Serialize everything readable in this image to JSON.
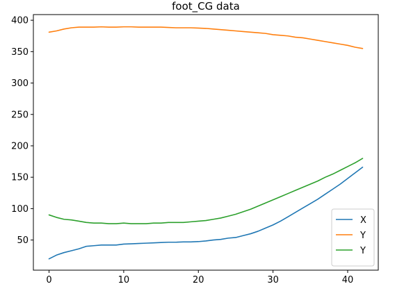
{
  "chart_data": {
    "type": "line",
    "title": "foot_CG data",
    "xlabel": "",
    "ylabel": "",
    "xlim": [
      -2.1,
      44.1
    ],
    "ylim": [
      2,
      409
    ],
    "xticks": [
      0,
      10,
      20,
      30,
      40
    ],
    "yticks": [
      50,
      100,
      150,
      200,
      250,
      300,
      350,
      400
    ],
    "grid": false,
    "legend_position": "lower-right",
    "x": [
      0,
      1,
      2,
      3,
      4,
      5,
      6,
      7,
      8,
      9,
      10,
      11,
      12,
      13,
      14,
      15,
      16,
      17,
      18,
      19,
      20,
      21,
      22,
      23,
      24,
      25,
      26,
      27,
      28,
      29,
      30,
      31,
      32,
      33,
      34,
      35,
      36,
      37,
      38,
      39,
      40,
      41,
      42
    ],
    "series": [
      {
        "name": "X",
        "color": "#1f77b4",
        "values": [
          20,
          26,
          30,
          33,
          36,
          40,
          41,
          42,
          42,
          42,
          43.5,
          44,
          44.5,
          45,
          45.5,
          46,
          46.5,
          46.5,
          47,
          47,
          47.5,
          48.5,
          50,
          51,
          53,
          54,
          57,
          60,
          64,
          69,
          74,
          80,
          87,
          94,
          101,
          108,
          115,
          123,
          131,
          139,
          148,
          157,
          166
        ]
      },
      {
        "name": "Y",
        "color": "#ff7f0e",
        "values": [
          381,
          383,
          386,
          388,
          389,
          389,
          389,
          389.5,
          389,
          389,
          389.5,
          389.5,
          389,
          389,
          389,
          389,
          388.5,
          388,
          388,
          388,
          387.5,
          387,
          386,
          385,
          384,
          383,
          382,
          381,
          380,
          379,
          377,
          376,
          375,
          373,
          372,
          370,
          368,
          366,
          364,
          362,
          360,
          357,
          355
        ]
      },
      {
        "name": "Y",
        "color": "#2ca02c",
        "values": [
          90,
          86,
          83,
          82,
          80,
          78,
          77,
          77,
          76,
          76,
          77,
          76,
          76,
          76,
          77,
          77,
          78,
          78,
          78,
          79,
          80,
          81,
          83,
          85,
          88,
          91,
          95,
          99,
          104,
          109,
          114,
          119,
          124,
          129,
          134,
          139,
          144,
          150,
          155,
          161,
          167,
          173,
          180
        ]
      }
    ]
  }
}
